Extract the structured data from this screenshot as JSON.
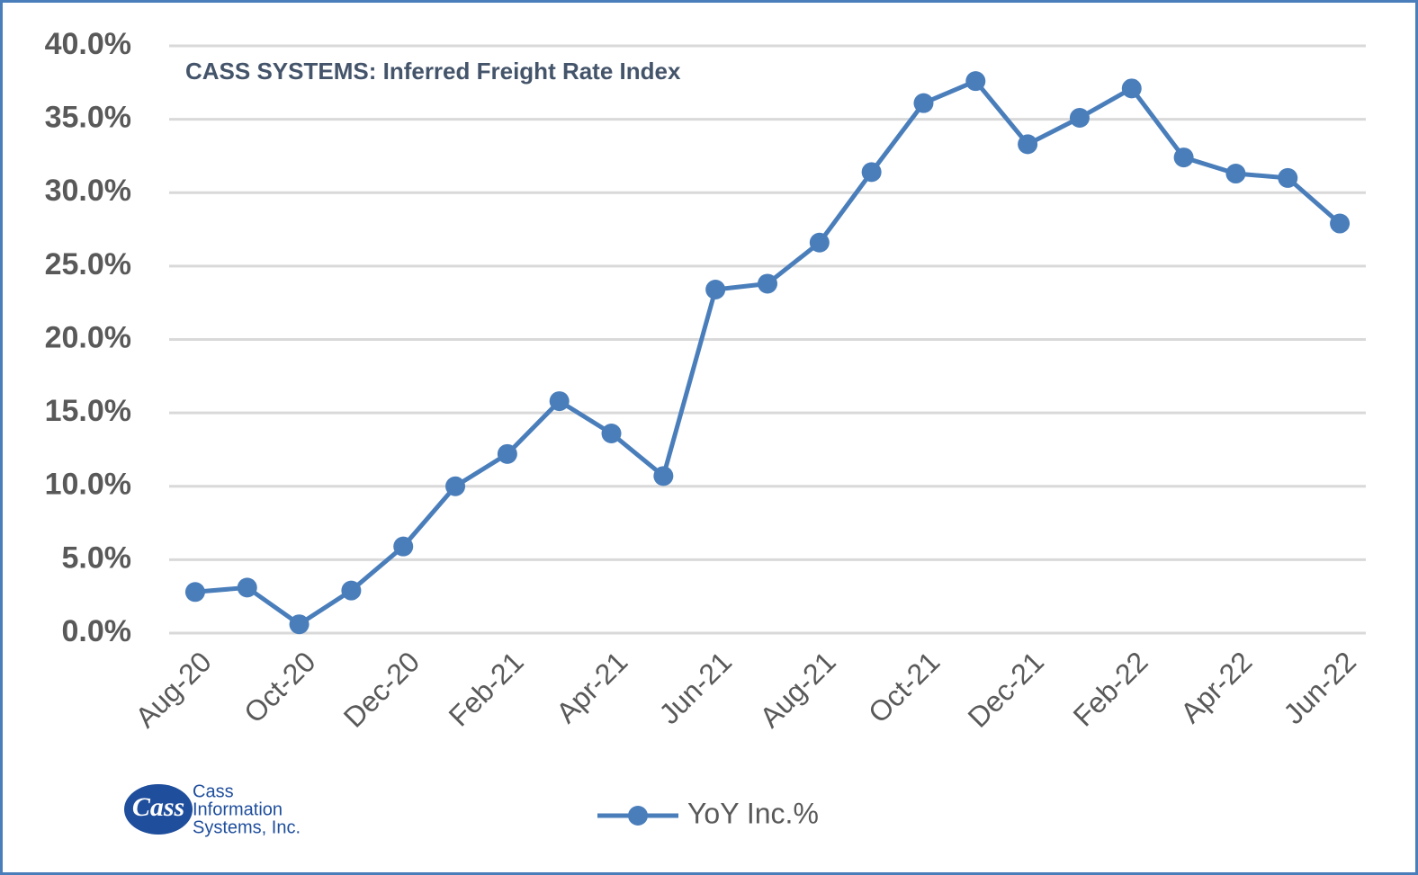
{
  "chart_data": {
    "type": "line",
    "title": "CASS SYSTEMS:  Inferred Freight Rate Index",
    "categories": [
      "Aug-20",
      null,
      "Oct-20",
      null,
      "Dec-20",
      null,
      "Feb-21",
      null,
      "Apr-21",
      null,
      "Jun-21",
      null,
      "Aug-21",
      null,
      "Oct-21",
      null,
      "Dec-21",
      null,
      "Feb-22",
      null,
      "Apr-22",
      null,
      "Jun-22"
    ],
    "series": [
      {
        "name": "YoY Inc.%",
        "color": "#4a7ebb",
        "values": [
          2.8,
          3.1,
          0.6,
          2.9,
          5.9,
          10.0,
          12.2,
          15.8,
          13.6,
          10.7,
          23.4,
          23.8,
          26.6,
          31.4,
          36.1,
          37.6,
          33.3,
          35.1,
          37.1,
          32.4,
          31.3,
          31.0,
          27.9
        ]
      }
    ],
    "ylim": [
      0,
      40
    ],
    "yticks": [
      {
        "value": 0,
        "label": "0.0%"
      },
      {
        "value": 5,
        "label": "5.0%"
      },
      {
        "value": 10,
        "label": "10.0%"
      },
      {
        "value": 15,
        "label": "15.0%"
      },
      {
        "value": 20,
        "label": "20.0%"
      },
      {
        "value": 25,
        "label": "25.0%"
      },
      {
        "value": 30,
        "label": "30.0%"
      },
      {
        "value": 35,
        "label": "35.0%"
      },
      {
        "value": 40,
        "label": "40.0%"
      }
    ],
    "grid": true,
    "legend": "bottom"
  },
  "logo": {
    "mark": "Cass",
    "lines": [
      "Cass",
      "Information",
      "Systems, Inc."
    ]
  }
}
